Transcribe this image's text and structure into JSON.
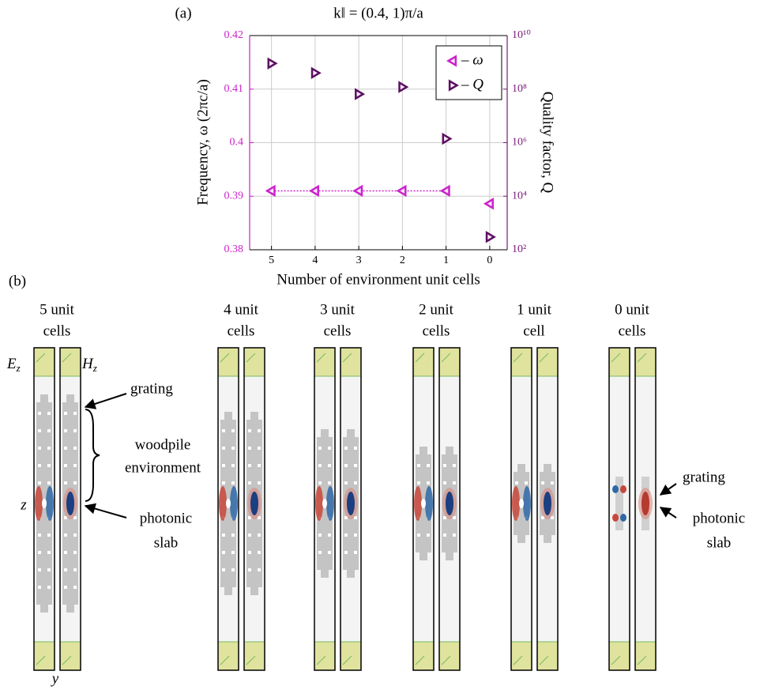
{
  "chart_data": {
    "type": "scatter",
    "panel_label": "(a)",
    "title": "k‖ = (0.4, 1)π/a",
    "xlabel": "Number of environment unit cells",
    "ylabel": "Frequency, ω (2πc/a)",
    "y2label": "Quality factor, Q",
    "x": [
      5,
      4,
      3,
      2,
      1,
      0
    ],
    "xlim": [
      5.5,
      -0.4
    ],
    "xticks": [
      5,
      4,
      3,
      2,
      1,
      0
    ],
    "ylim": [
      0.38,
      0.42
    ],
    "yticks": [
      0.38,
      0.39,
      0.4,
      0.41,
      0.42
    ],
    "ycolor": "#cc22cc",
    "y2lim": [
      100,
      10000000000
    ],
    "y2scale": "log",
    "y2color": "#7a1a7a",
    "y2ticks": [
      {
        "value": 100,
        "label": "10²"
      },
      {
        "value": 10000,
        "label": "10⁴"
      },
      {
        "value": 1000000,
        "label": "10⁶"
      },
      {
        "value": 100000000,
        "label": "10⁸"
      },
      {
        "value": 10000000000,
        "label": "10¹⁰"
      }
    ],
    "grid": true,
    "legend": "upper-right",
    "series": [
      {
        "name": "– ω",
        "color": "#cc22cc",
        "marker": "triangle-left",
        "values": [
          0.391,
          0.391,
          0.391,
          0.391,
          0.391,
          0.3886
        ]
      },
      {
        "name": "– Q",
        "color": "#5a1060",
        "marker": "triangle-right",
        "axis": "y2",
        "values": [
          910000000,
          400000000,
          65000000,
          120000000,
          1400000,
          300
        ]
      }
    ]
  },
  "panel_b": {
    "label": "(b)",
    "columns": [
      {
        "heading": [
          "5 unit",
          "cells"
        ]
      },
      {
        "heading": [
          "4 unit",
          "cells"
        ]
      },
      {
        "heading": [
          "3 unit",
          "cells"
        ]
      },
      {
        "heading": [
          "2 unit",
          "cells"
        ]
      },
      {
        "heading": [
          "1 unit",
          "cell"
        ]
      },
      {
        "heading": [
          "0 unit",
          "cells"
        ]
      }
    ],
    "field_labels": [
      {
        "base": "E",
        "sub": "z"
      },
      {
        "base": "H",
        "sub": "z"
      }
    ],
    "axis_labels": [
      "z",
      "y"
    ],
    "left_annotations": [
      "grating",
      [
        "woodpile",
        "environment"
      ],
      [
        "photonic",
        "slab"
      ]
    ],
    "right_annotations": [
      "grating",
      [
        "photonic",
        "slab"
      ]
    ]
  }
}
